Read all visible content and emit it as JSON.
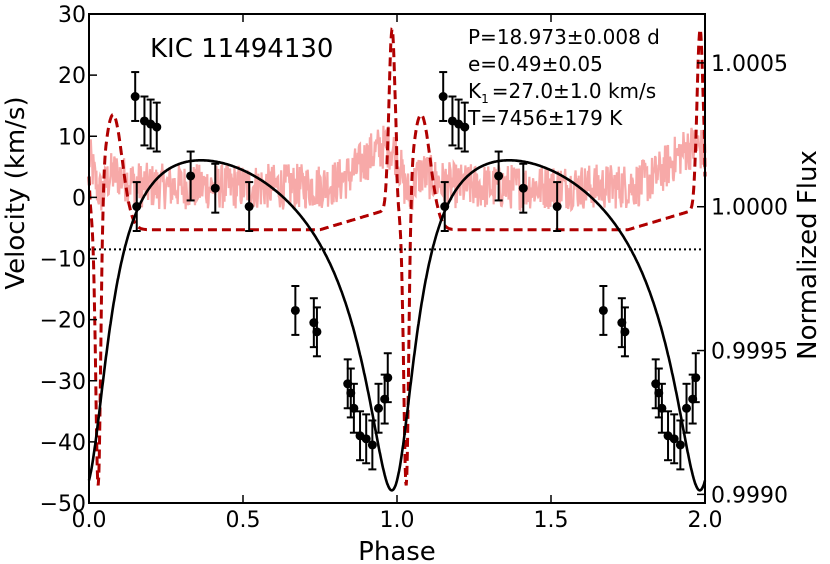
{
  "chart_data": {
    "type": "line",
    "title": "KIC 11494130",
    "xlabel": "Phase",
    "ylabel": "Velocity (km/s)",
    "y2label": "Normalized Flux",
    "xlim": [
      0.0,
      2.0
    ],
    "ylim": [
      -50,
      30
    ],
    "y2lim": [
      0.99897,
      1.00067
    ],
    "x_ticks": [
      0.0,
      0.5,
      1.0,
      1.5,
      2.0
    ],
    "x_tick_labels": [
      "0.0",
      "0.5",
      "1.0",
      "1.5",
      "2.0"
    ],
    "y_ticks": [
      -50,
      -40,
      -30,
      -20,
      -10,
      0,
      10,
      20,
      30
    ],
    "y_tick_labels": [
      "−50",
      "−40",
      "−30",
      "−20",
      "−10",
      "0",
      "10",
      "20",
      "30"
    ],
    "y2_ticks": [
      0.999,
      0.9995,
      1.0,
      1.0005
    ],
    "y2_tick_labels": [
      "0.9990",
      "0.9995",
      "1.0000",
      "1.0005"
    ],
    "annotations": [
      {
        "base": "P=18.973±0.008 d",
        "sub": "",
        "tail": ""
      },
      {
        "base": "e=0.49±0.05",
        "sub": "",
        "tail": ""
      },
      {
        "base": "K",
        "sub": "1",
        "tail": "=27.0±1.0 km/s"
      },
      {
        "base": "T=7456±179 K",
        "sub": "",
        "tail": ""
      }
    ],
    "orbit_params": {
      "e": 0.49,
      "omega_deg": 200,
      "K": 27.0,
      "gamma": -8.5,
      "t_periastron_phase": 0.0
    },
    "reference_line": {
      "y": -8.5,
      "style": "dotted"
    },
    "series": [
      {
        "name": "RV measurements",
        "color": "#000000",
        "style": "errorbar",
        "points": [
          {
            "phase": 0.15,
            "v": 16.5,
            "err": 4
          },
          {
            "phase": 0.155,
            "v": -1.5,
            "err": 4
          },
          {
            "phase": 0.18,
            "v": 12.5,
            "err": 4
          },
          {
            "phase": 0.2,
            "v": 12.0,
            "err": 4
          },
          {
            "phase": 0.22,
            "v": 11.5,
            "err": 4
          },
          {
            "phase": 0.33,
            "v": 3.5,
            "err": 4
          },
          {
            "phase": 0.41,
            "v": 1.5,
            "err": 4
          },
          {
            "phase": 0.52,
            "v": -1.5,
            "err": 4
          },
          {
            "phase": 0.67,
            "v": -18.5,
            "err": 4
          },
          {
            "phase": 0.73,
            "v": -20.5,
            "err": 4
          },
          {
            "phase": 0.74,
            "v": -22.0,
            "err": 4
          },
          {
            "phase": 0.84,
            "v": -30.5,
            "err": 4
          },
          {
            "phase": 0.85,
            "v": -32.0,
            "err": 4
          },
          {
            "phase": 0.86,
            "v": -34.5,
            "err": 4
          },
          {
            "phase": 0.88,
            "v": -39.0,
            "err": 4
          },
          {
            "phase": 0.9,
            "v": -39.5,
            "err": 4
          },
          {
            "phase": 0.92,
            "v": -40.5,
            "err": 4
          },
          {
            "phase": 0.94,
            "v": -34.5,
            "err": 4
          },
          {
            "phase": 0.96,
            "v": -33.0,
            "err": 4
          },
          {
            "phase": 0.97,
            "v": -29.5,
            "err": 4
          }
        ]
      },
      {
        "name": "RV orbit model",
        "color": "#000000",
        "style": "solid"
      },
      {
        "name": "Kepler light curve",
        "color": "#f7a9a8",
        "style": "noisy"
      },
      {
        "name": "Heartbeat model",
        "color": "#b00000",
        "style": "dashed"
      }
    ]
  }
}
